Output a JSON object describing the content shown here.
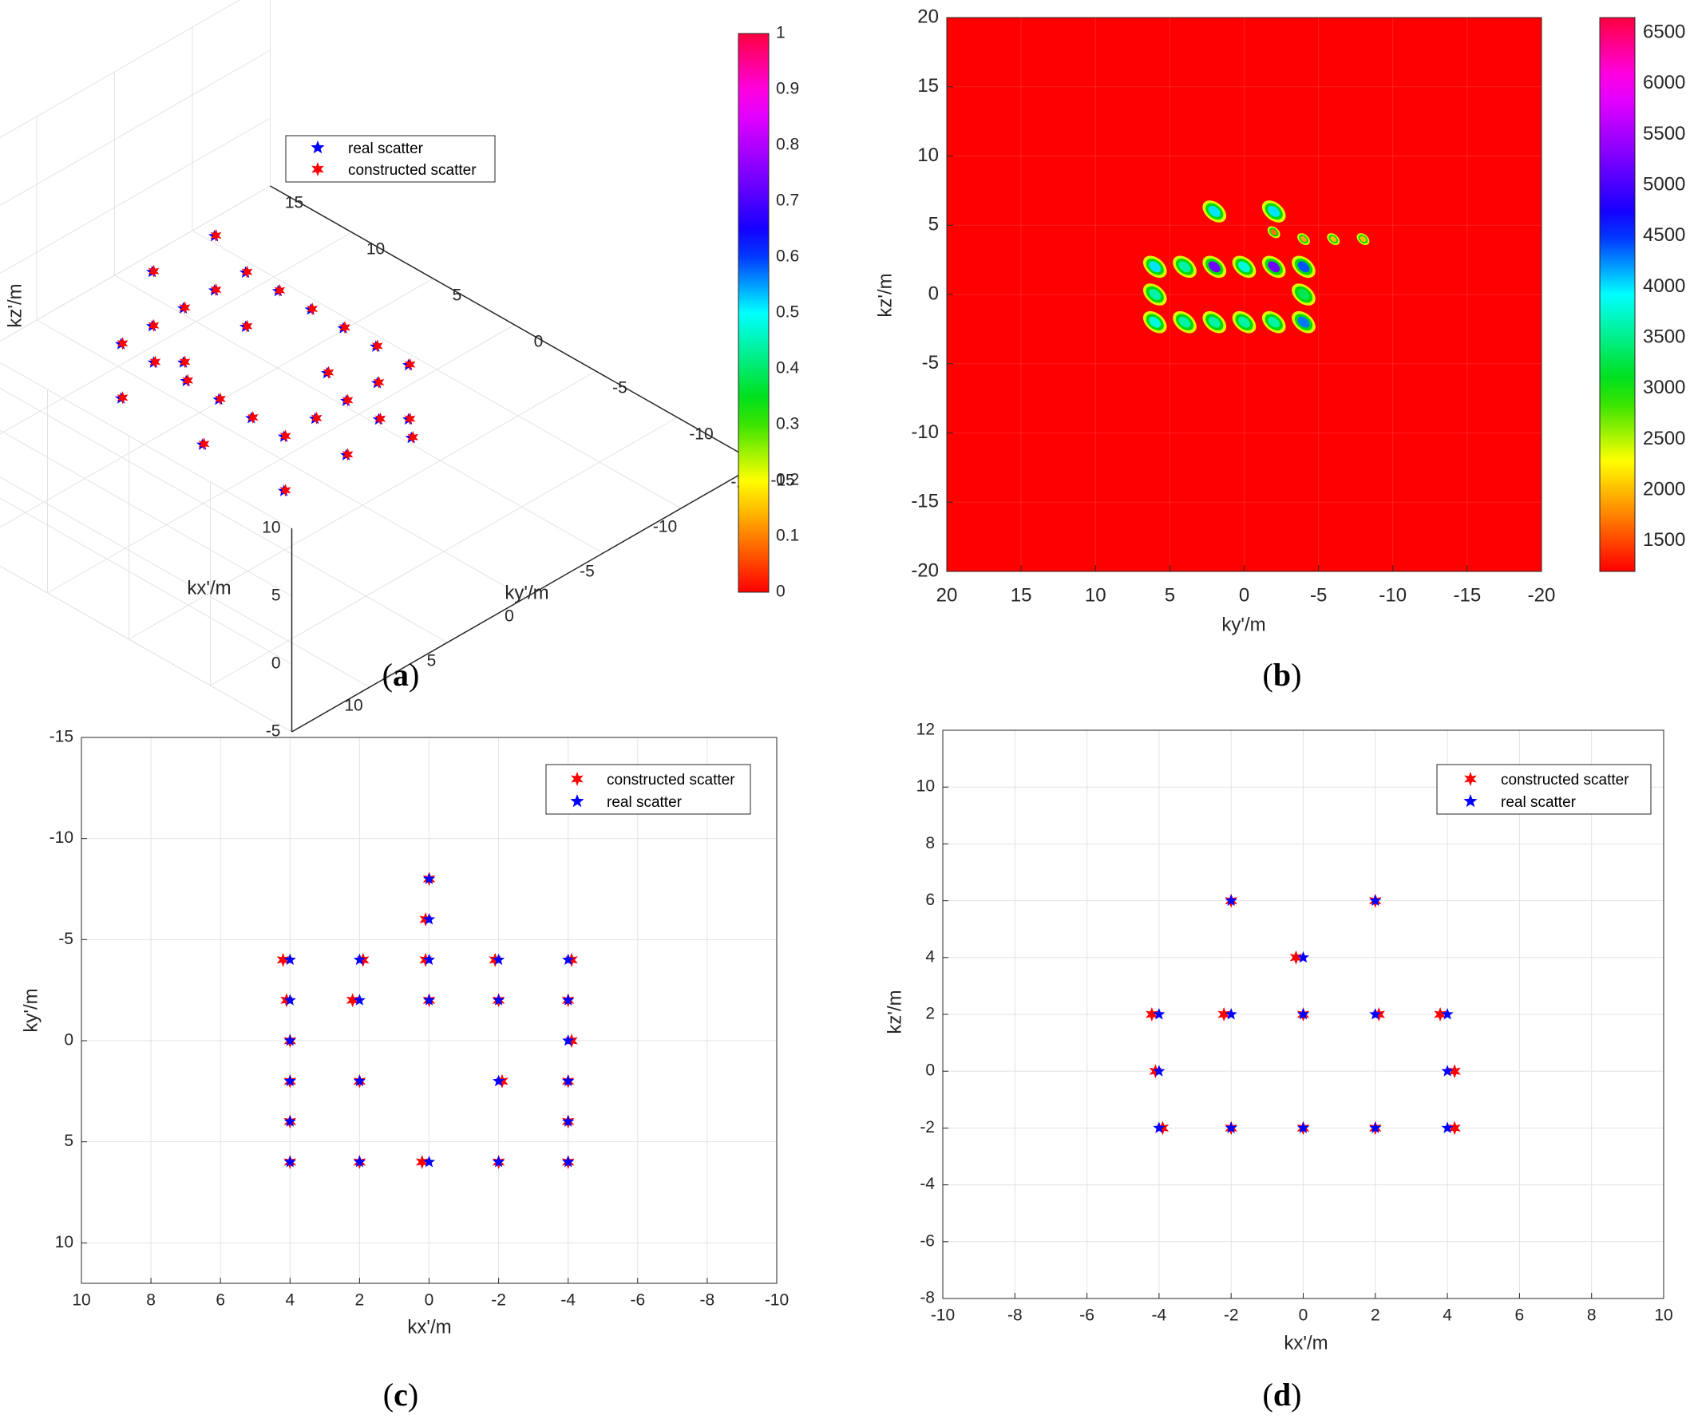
{
  "captions": {
    "a": "a",
    "b": "b",
    "c": "c",
    "d": "d"
  },
  "colors": {
    "constructed": "#ff0000",
    "real": "#0000ff",
    "grid": "#e3e3e3",
    "axis": "#262626",
    "heatmap_bg": "#ff0000"
  },
  "panel_a": {
    "type": "scatter3d",
    "xlabel": "kx'/m",
    "ylabel": "ky'/m",
    "zlabel": "kz'/m",
    "xlim": [
      -15,
      15
    ],
    "ylim": [
      -15,
      15
    ],
    "zlim": [
      -5,
      10
    ],
    "x_ticks": [
      "15",
      "10",
      "5",
      "0",
      "-5",
      "-10",
      "-15"
    ],
    "y_ticks": [
      "-15",
      "-10",
      "-5",
      "0",
      "5",
      "10",
      "15"
    ],
    "z_ticks": [
      "10",
      "5",
      "0",
      "-5"
    ],
    "legend": [
      "real scatter",
      "constructed scatter"
    ],
    "colorbar": {
      "ticks": [
        "1",
        "0.9",
        "0.8",
        "0.7",
        "0.6",
        "0.5",
        "0.4",
        "0.3",
        "0.2",
        "0.1",
        "0"
      ],
      "range": [
        0,
        1
      ]
    }
  },
  "panel_b": {
    "type": "heatmap",
    "xlabel": "ky'/m",
    "ylabel": "kz'/m",
    "xlim": [
      20,
      -20
    ],
    "ylim": [
      -20,
      20
    ],
    "x_ticks": [
      "20",
      "15",
      "10",
      "5",
      "0",
      "-5",
      "-10",
      "-15",
      "-20"
    ],
    "y_ticks": [
      "20",
      "15",
      "10",
      "5",
      "0",
      "-5",
      "-10",
      "-15",
      "-20"
    ],
    "colorbar": {
      "ticks": [
        "6500",
        "6000",
        "5500",
        "5000",
        "4500",
        "4000",
        "3500",
        "3000",
        "2500",
        "2000",
        "1500"
      ],
      "range": [
        1200,
        6650
      ]
    },
    "blobs": [
      {
        "ky": 2,
        "kz": 6,
        "v": 4000
      },
      {
        "ky": -2,
        "kz": 6,
        "v": 4000
      },
      {
        "ky": 6,
        "kz": 2,
        "v": 4000
      },
      {
        "ky": 4,
        "kz": 2,
        "v": 3600
      },
      {
        "ky": 2,
        "kz": 2,
        "v": 5200
      },
      {
        "ky": 0,
        "kz": 2,
        "v": 3800
      },
      {
        "ky": -2,
        "kz": 2,
        "v": 5200
      },
      {
        "ky": -4,
        "kz": 2,
        "v": 4400
      },
      {
        "ky": 6,
        "kz": 0,
        "v": 3600
      },
      {
        "ky": -4,
        "kz": 0,
        "v": 3300
      },
      {
        "ky": 6,
        "kz": -2,
        "v": 3800
      },
      {
        "ky": 4,
        "kz": -2,
        "v": 3600
      },
      {
        "ky": 2,
        "kz": -2,
        "v": 3600
      },
      {
        "ky": 0,
        "kz": -2,
        "v": 3600
      },
      {
        "ky": -2,
        "kz": -2,
        "v": 3600
      },
      {
        "ky": -4,
        "kz": -2,
        "v": 4300
      },
      {
        "ky": -6,
        "kz": 4,
        "v": 2000
      },
      {
        "ky": -8,
        "kz": 4,
        "v": 2000
      },
      {
        "ky": -4,
        "kz": 4,
        "v": 1900
      },
      {
        "ky": -2,
        "kz": 4.5,
        "v": 1700
      }
    ]
  },
  "panel_c": {
    "type": "scatter",
    "xlabel": "kx'/m",
    "ylabel": "ky'/m",
    "xlim": [
      10,
      -10
    ],
    "ylim": [
      -15,
      12
    ],
    "x_ticks": [
      "10",
      "8",
      "6",
      "4",
      "2",
      "0",
      "-2",
      "-4",
      "-6",
      "-8",
      "-10"
    ],
    "y_ticks": [
      "-15",
      "-10",
      "-5",
      "0",
      "5",
      "10"
    ],
    "legend": [
      "constructed scatter",
      "real scatter"
    ],
    "real": [
      [
        4,
        -4
      ],
      [
        2,
        -4
      ],
      [
        0,
        -4
      ],
      [
        -2,
        -4
      ],
      [
        -4,
        -4
      ],
      [
        4,
        -2
      ],
      [
        2,
        -2
      ],
      [
        0,
        -2
      ],
      [
        -2,
        -2
      ],
      [
        -4,
        -2
      ],
      [
        4,
        0
      ],
      [
        -4,
        0
      ],
      [
        4,
        2
      ],
      [
        2,
        2
      ],
      [
        -2,
        2
      ],
      [
        -4,
        2
      ],
      [
        4,
        4
      ],
      [
        -4,
        4
      ],
      [
        4,
        6
      ],
      [
        2,
        6
      ],
      [
        0,
        6
      ],
      [
        -2,
        6
      ],
      [
        -4,
        6
      ],
      [
        0,
        -6
      ],
      [
        0,
        -8
      ]
    ],
    "constructed": [
      [
        4.2,
        -4
      ],
      [
        1.9,
        -4
      ],
      [
        0.1,
        -4
      ],
      [
        -1.9,
        -4
      ],
      [
        -4.1,
        -4
      ],
      [
        4.1,
        -2
      ],
      [
        2.2,
        -2
      ],
      [
        0,
        -2
      ],
      [
        -2,
        -2
      ],
      [
        -4,
        -2
      ],
      [
        4,
        0
      ],
      [
        -4.1,
        0
      ],
      [
        4,
        2
      ],
      [
        2,
        2
      ],
      [
        -2.1,
        2
      ],
      [
        -4,
        2
      ],
      [
        4,
        4
      ],
      [
        -4,
        4
      ],
      [
        4,
        6
      ],
      [
        2,
        6
      ],
      [
        0.2,
        6
      ],
      [
        -2,
        6
      ],
      [
        -4,
        6
      ],
      [
        0.1,
        -6
      ],
      [
        0,
        -8
      ]
    ]
  },
  "panel_d": {
    "type": "scatter",
    "xlabel": "kx'/m",
    "ylabel": "kz'/m",
    "xlim": [
      -10,
      10
    ],
    "ylim": [
      -8,
      12
    ],
    "x_ticks": [
      "-10",
      "-8",
      "-6",
      "-4",
      "-2",
      "0",
      "2",
      "4",
      "6",
      "8",
      "10"
    ],
    "y_ticks": [
      "12",
      "10",
      "8",
      "6",
      "4",
      "2",
      "0",
      "-2",
      "-4",
      "-6",
      "-8"
    ],
    "legend": [
      "constructed scatter",
      "real scatter"
    ],
    "real": [
      [
        -2,
        6
      ],
      [
        2,
        6
      ],
      [
        0,
        4
      ],
      [
        -4,
        2
      ],
      [
        -2,
        2
      ],
      [
        0,
        2
      ],
      [
        2,
        2
      ],
      [
        4,
        2
      ],
      [
        -4,
        0
      ],
      [
        4,
        0
      ],
      [
        -4,
        -2
      ],
      [
        -2,
        -2
      ],
      [
        0,
        -2
      ],
      [
        2,
        -2
      ],
      [
        4,
        -2
      ]
    ],
    "constructed": [
      [
        -2,
        6
      ],
      [
        2,
        6
      ],
      [
        -0.2,
        4
      ],
      [
        -4.2,
        2
      ],
      [
        -2.2,
        2
      ],
      [
        0,
        2
      ],
      [
        2.1,
        2
      ],
      [
        3.8,
        2
      ],
      [
        -4.1,
        0
      ],
      [
        4.2,
        0
      ],
      [
        -3.9,
        -2
      ],
      [
        -2,
        -2
      ],
      [
        0,
        -2
      ],
      [
        2,
        -2
      ],
      [
        4.2,
        -2
      ]
    ]
  }
}
